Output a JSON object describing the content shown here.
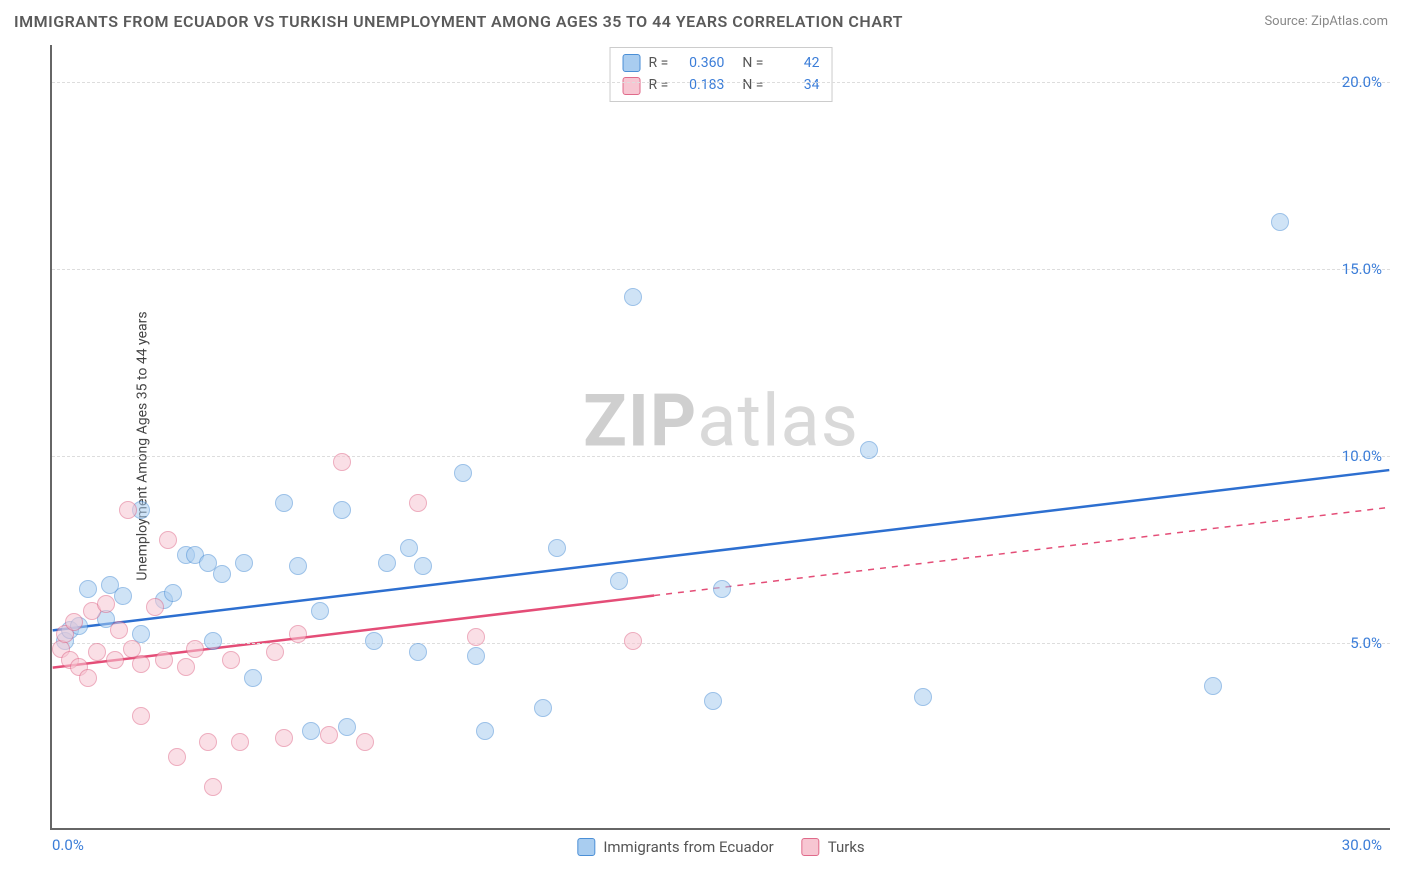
{
  "title": "IMMIGRANTS FROM ECUADOR VS TURKISH UNEMPLOYMENT AMONG AGES 35 TO 44 YEARS CORRELATION CHART",
  "source_label": "Source:",
  "source_name": "ZipAtlas.com",
  "ylabel": "Unemployment Among Ages 35 to 44 years",
  "watermark_a": "ZIP",
  "watermark_b": "atlas",
  "chart": {
    "type": "scatter",
    "xlim": [
      0,
      30
    ],
    "ylim": [
      0,
      21
    ],
    "x_ticks": [
      {
        "v": 0,
        "label": "0.0%",
        "pos": "left"
      },
      {
        "v": 30,
        "label": "30.0%",
        "pos": "right"
      }
    ],
    "y_ticks": [
      {
        "v": 5,
        "label": "5.0%"
      },
      {
        "v": 10,
        "label": "10.0%"
      },
      {
        "v": 15,
        "label": "15.0%"
      },
      {
        "v": 20,
        "label": "20.0%"
      }
    ],
    "grid_color": "#dddddd",
    "background_color": "#ffffff",
    "point_radius": 9,
    "point_opacity": 0.55,
    "series": [
      {
        "id": "ecuador",
        "label": "Immigrants from Ecuador",
        "fill": "#a9cdf0",
        "stroke": "#4b8fd6",
        "line_color": "#2d6fd0",
        "r_value": "0.360",
        "n_value": "42",
        "trend": {
          "x1": 0,
          "y1": 5.3,
          "x2": 30,
          "y2": 9.6,
          "dash_from_x": null
        },
        "points": [
          [
            0.3,
            5.0
          ],
          [
            0.4,
            5.3
          ],
          [
            0.6,
            5.4
          ],
          [
            0.8,
            6.4
          ],
          [
            1.2,
            5.6
          ],
          [
            1.3,
            6.5
          ],
          [
            1.6,
            6.2
          ],
          [
            2.0,
            5.2
          ],
          [
            2.0,
            8.5
          ],
          [
            2.5,
            6.1
          ],
          [
            2.7,
            6.3
          ],
          [
            3.0,
            7.3
          ],
          [
            3.2,
            7.3
          ],
          [
            3.5,
            7.1
          ],
          [
            3.6,
            5.0
          ],
          [
            3.8,
            6.8
          ],
          [
            4.3,
            7.1
          ],
          [
            4.5,
            4.0
          ],
          [
            5.2,
            8.7
          ],
          [
            5.5,
            7.0
          ],
          [
            5.8,
            2.6
          ],
          [
            6.0,
            5.8
          ],
          [
            6.5,
            8.5
          ],
          [
            6.6,
            2.7
          ],
          [
            7.2,
            5.0
          ],
          [
            7.5,
            7.1
          ],
          [
            8.0,
            7.5
          ],
          [
            8.2,
            4.7
          ],
          [
            8.3,
            7.0
          ],
          [
            9.2,
            9.5
          ],
          [
            9.5,
            4.6
          ],
          [
            9.7,
            2.6
          ],
          [
            11.0,
            3.2
          ],
          [
            11.3,
            7.5
          ],
          [
            12.7,
            6.6
          ],
          [
            13.0,
            14.2
          ],
          [
            14.8,
            3.4
          ],
          [
            15.0,
            6.4
          ],
          [
            18.3,
            10.1
          ],
          [
            19.5,
            3.5
          ],
          [
            26.0,
            3.8
          ],
          [
            27.5,
            16.2
          ]
        ]
      },
      {
        "id": "turks",
        "label": "Turks",
        "fill": "#f7c6d2",
        "stroke": "#e06a8a",
        "line_color": "#e44d77",
        "r_value": "0.183",
        "n_value": "34",
        "trend": {
          "x1": 0,
          "y1": 4.3,
          "x2": 30,
          "y2": 8.6,
          "dash_from_x": 13.5
        },
        "points": [
          [
            0.2,
            4.8
          ],
          [
            0.3,
            5.2
          ],
          [
            0.4,
            4.5
          ],
          [
            0.5,
            5.5
          ],
          [
            0.6,
            4.3
          ],
          [
            0.8,
            4.0
          ],
          [
            0.9,
            5.8
          ],
          [
            1.0,
            4.7
          ],
          [
            1.2,
            6.0
          ],
          [
            1.4,
            4.5
          ],
          [
            1.5,
            5.3
          ],
          [
            1.7,
            8.5
          ],
          [
            1.8,
            4.8
          ],
          [
            2.0,
            4.4
          ],
          [
            2.0,
            3.0
          ],
          [
            2.3,
            5.9
          ],
          [
            2.5,
            4.5
          ],
          [
            2.6,
            7.7
          ],
          [
            2.8,
            1.9
          ],
          [
            3.0,
            4.3
          ],
          [
            3.2,
            4.8
          ],
          [
            3.5,
            2.3
          ],
          [
            3.6,
            1.1
          ],
          [
            4.0,
            4.5
          ],
          [
            4.2,
            2.3
          ],
          [
            5.0,
            4.7
          ],
          [
            5.2,
            2.4
          ],
          [
            5.5,
            5.2
          ],
          [
            6.2,
            2.5
          ],
          [
            6.5,
            9.8
          ],
          [
            7.0,
            2.3
          ],
          [
            8.2,
            8.7
          ],
          [
            9.5,
            5.1
          ],
          [
            13.0,
            5.0
          ]
        ]
      }
    ],
    "legend_top": {
      "r_label": "R =",
      "n_label": "N ="
    },
    "legend_bottom_labels": [
      "Immigrants from Ecuador",
      "Turks"
    ]
  }
}
